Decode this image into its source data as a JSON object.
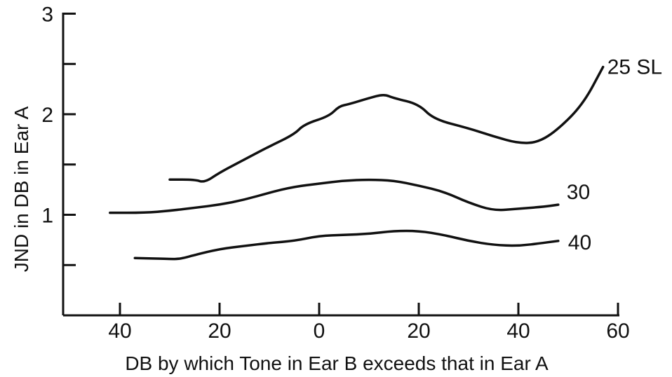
{
  "chart_data": {
    "type": "line",
    "title": "",
    "xlabel": "DB by which Tone in Ear B exceeds that in Ear A",
    "ylabel": "JND in DB in Ear A",
    "xlim": [
      -50,
      60
    ],
    "ylim": [
      0,
      3
    ],
    "x_ticks": [
      -40,
      -20,
      0,
      20,
      40,
      60
    ],
    "x_tick_labels": [
      "40",
      "20",
      "0",
      "20",
      "40",
      "60"
    ],
    "y_ticks": [
      0.5,
      1,
      1.5,
      2,
      2.5,
      3
    ],
    "y_tick_labels": [
      "",
      "1",
      "",
      "2",
      "",
      "3"
    ],
    "grid": false,
    "series": [
      {
        "name": "25 SL",
        "x": [
          -30,
          -25,
          -23,
          -20,
          -15,
          -10,
          -5,
          -3,
          2,
          4,
          6,
          10,
          13,
          15,
          20,
          23,
          30,
          35,
          40,
          44,
          48,
          53,
          57
        ],
        "y": [
          1.35,
          1.35,
          1.32,
          1.42,
          1.55,
          1.68,
          1.8,
          1.9,
          1.98,
          2.08,
          2.1,
          2.16,
          2.2,
          2.16,
          2.1,
          1.95,
          1.86,
          1.78,
          1.71,
          1.72,
          1.85,
          2.1,
          2.47
        ]
      },
      {
        "name": "30",
        "x": [
          -42,
          -35,
          -30,
          -25,
          -20,
          -15,
          -10,
          -5,
          0,
          5,
          10,
          15,
          20,
          25,
          30,
          35,
          40,
          45,
          48
        ],
        "y": [
          1.02,
          1.02,
          1.04,
          1.07,
          1.1,
          1.15,
          1.22,
          1.28,
          1.31,
          1.34,
          1.35,
          1.34,
          1.29,
          1.23,
          1.12,
          1.04,
          1.06,
          1.08,
          1.1
        ]
      },
      {
        "name": "40",
        "x": [
          -37,
          -30,
          -28,
          -25,
          -20,
          -15,
          -10,
          -5,
          0,
          5,
          10,
          15,
          20,
          25,
          30,
          35,
          40,
          45,
          48
        ],
        "y": [
          0.57,
          0.56,
          0.56,
          0.6,
          0.66,
          0.69,
          0.72,
          0.74,
          0.79,
          0.8,
          0.81,
          0.84,
          0.84,
          0.8,
          0.74,
          0.7,
          0.69,
          0.72,
          0.74
        ]
      }
    ],
    "series_label_text": [
      "25 SL",
      "30",
      "40"
    ]
  }
}
